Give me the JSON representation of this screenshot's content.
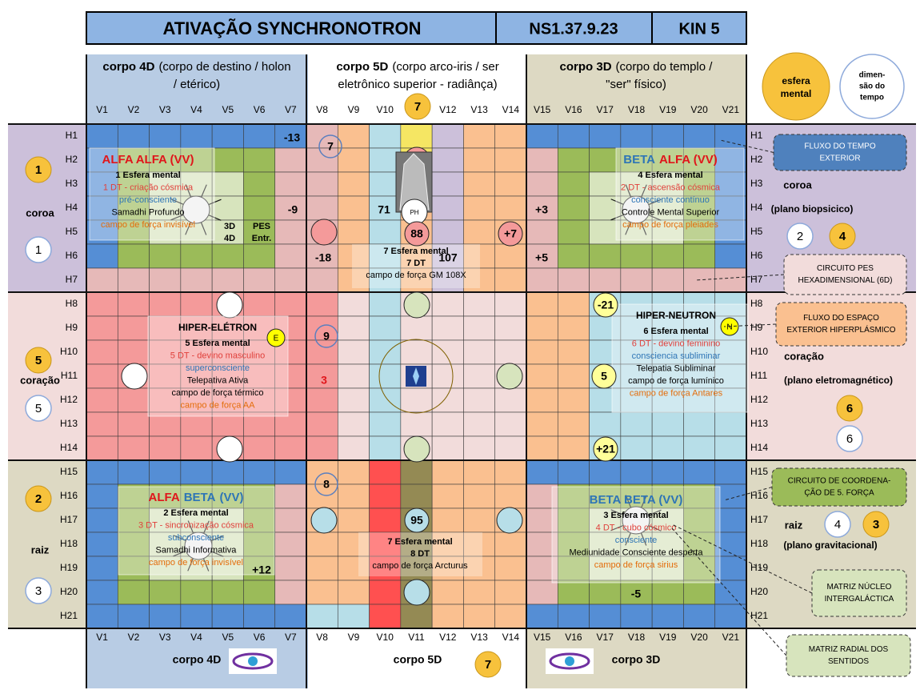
{
  "header": {
    "title": "ATIVAÇÃO SYNCHRONOTRON",
    "code": "NS1.37.9.23",
    "kin": "KIN 5"
  },
  "bodies": [
    {
      "name": "corpo 4D",
      "line1": "(corpo de destino / holon",
      "line2": "/ etérico)"
    },
    {
      "name": "corpo 5D",
      "line1": "(corpo arco-iris / ser",
      "line2": "eletrônico superior - radiânça)"
    },
    {
      "name": "corpo 3D",
      "line1": "(corpo do templo /",
      "line2": "\"ser\" físico)"
    }
  ],
  "columns": [
    "V1",
    "V2",
    "V3",
    "V4",
    "V5",
    "V6",
    "V7",
    "V8",
    "V9",
    "V10",
    "V11",
    "V12",
    "V13",
    "V14",
    "V15",
    "V16",
    "V17",
    "V18",
    "V19",
    "V20",
    "V21"
  ],
  "rows": [
    "H1",
    "H2",
    "H3",
    "H4",
    "H5",
    "H6",
    "H7",
    "H8",
    "H9",
    "H10",
    "H11",
    "H12",
    "H13",
    "H14",
    "H15",
    "H16",
    "H17",
    "H18",
    "H19",
    "H20",
    "H21"
  ],
  "top_circles": {
    "sphere": [
      "esfera",
      "mental"
    ],
    "dimension": [
      "dimen-",
      "são do",
      "tempo"
    ],
    "top_number": "7",
    "bottom_number": "7"
  },
  "left_side": [
    {
      "yellow": "1",
      "label": "coroa",
      "outline": "1"
    },
    {
      "yellow": "5",
      "label": "coração",
      "outline": "5"
    },
    {
      "yellow": "2",
      "label": "raiz",
      "outline": "3"
    }
  ],
  "right_side": [
    {
      "label": "coroa",
      "plane": "(plano biopsicico)",
      "outline": "2",
      "yellow": "4"
    },
    {
      "label": "coração",
      "plane": "(plano eletromagnético)",
      "yellow": "6",
      "outline": "6"
    },
    {
      "label": "raiz",
      "plane": "(plano gravitacional)",
      "outline": "4",
      "yellow": "3"
    }
  ],
  "quadrants": [
    {
      "title": [
        "ALFA ALFA (VV)"
      ],
      "lines": [
        "1 Esfera mental",
        "1 DT - criação cósmica",
        "pré-consciente",
        "Samadhi Profundo",
        "campo de força invisível"
      ]
    },
    {
      "title": [
        "BETA",
        "ALFA (VV)"
      ],
      "lines": [
        "4 Esfera mental",
        "2 DT - ascensão cósmica",
        "consciente contínuo",
        "Controle Mental Superior",
        "campo de força pleiades"
      ]
    },
    {
      "title": [
        "HIPER-ELÉTRON"
      ],
      "lines": [
        "5 Esfera mental",
        "5 DT - devino masculino",
        "superconsciente",
        "Telepativa Ativa",
        "campo de força térmico",
        "campo de força AA"
      ]
    },
    {
      "title": [
        "HIPER-NEUTRON"
      ],
      "lines": [
        "6 Esfera mental",
        "6 DT - devino feminino",
        "consciencia subliminar",
        "Telepatia Subliminar",
        "campo de força lumínico",
        "campo de força Antares"
      ]
    },
    {
      "title": [
        "ALFA",
        "BETA",
        "(VV)"
      ],
      "lines": [
        "2 Esfera mental",
        "3 DT - sincronização cósmica",
        "subconsciente",
        "Samadhi Informativa",
        "campo de força invisível"
      ]
    },
    {
      "title": [
        "BETA BETA (VV)"
      ],
      "lines": [
        "3 Esfera mental",
        "4 DT - cubo cósmico",
        "consciente",
        "Mediunidade Consciente desperta",
        "campo de força sirius"
      ]
    }
  ],
  "center_top": [
    "7 Esfera mental",
    "7 DT",
    "campo de força GM 108X"
  ],
  "center_bottom": [
    "7 Esfera mental",
    "8 DT",
    "campo de força Arcturus"
  ],
  "grid_numbers": [
    "-13",
    "-9",
    "-18",
    "71",
    "88",
    "107",
    "+7",
    "+3",
    "+5",
    "-21",
    "5",
    "+21",
    "9",
    "3",
    "8",
    "95",
    "+12",
    "-5",
    "7"
  ],
  "cell_labels": {
    "ph": "PH",
    "dim": [
      "3D",
      "4D"
    ],
    "pes": [
      "PES",
      "Entr."
    ],
    "e": "E",
    "n": "N"
  },
  "callouts": [
    [
      "FLUXO DO TEMPO",
      "EXTERIOR"
    ],
    [
      "CIRCUITO PES",
      "HEXADIMENSIONAL (6D)"
    ],
    [
      "FLUXO DO ESPAÇO",
      "EXTERIOR HIPERPLÁSMICO"
    ],
    [
      "CIRCUITO DE COORDENA-",
      "ÇÃO DE 5. FORÇA"
    ],
    [
      "MATRIZ NÚCLEO",
      "INTERGALÁCTICA"
    ],
    [
      "MATRIZ RADIAL DOS",
      "SENTIDOS"
    ]
  ]
}
